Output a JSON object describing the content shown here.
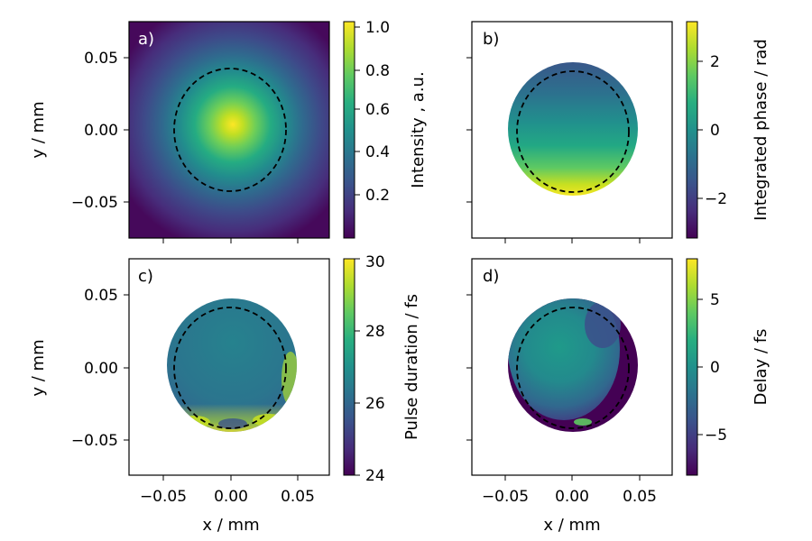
{
  "chart_data": [
    {
      "panel": "a)",
      "type": "heatmap",
      "description_quantity": "Intensity",
      "xlabel": "",
      "ylabel": "y / mm",
      "xlim": [
        -0.075,
        0.075
      ],
      "ylim": [
        -0.075,
        0.075
      ],
      "x_ticks": [
        -0.05,
        0.0,
        0.05
      ],
      "y_ticks": [
        0.05,
        0.0,
        -0.05
      ],
      "y_tick_labels": [
        "0.05",
        "0.00",
        "−0.05"
      ],
      "show_x_tick_labels": false,
      "show_y_tick_labels": true,
      "dashed_circle_center": [
        0.0,
        0.0
      ],
      "dashed_circle_radii_mm": [
        0.042,
        0.042
      ],
      "beam_center": [
        0.001,
        0.003
      ],
      "colormap": "viridis",
      "colorbar": {
        "label": "Intensity , a.u.",
        "range": [
          0.02,
          1.0
        ],
        "ticks": [
          0.2,
          0.4,
          0.6,
          0.8,
          1.0
        ],
        "tick_labels": [
          "0.2",
          "0.4",
          "0.6",
          "0.8",
          "1.0"
        ]
      }
    },
    {
      "panel": "b)",
      "type": "heatmap",
      "description_quantity": "Integrated phase",
      "xlabel": "",
      "ylabel": "",
      "xlim": [
        -0.075,
        0.075
      ],
      "ylim": [
        -0.075,
        0.075
      ],
      "x_ticks": [
        -0.05,
        0.0,
        0.05
      ],
      "y_ticks": [
        0.05,
        0.0,
        -0.05
      ],
      "show_x_tick_labels": false,
      "show_y_tick_labels": false,
      "aperture_center": [
        0.0,
        0.0
      ],
      "aperture_radii_mm": [
        0.047,
        0.049
      ],
      "dashed_circle_center": [
        0.0,
        0.0
      ],
      "dashed_circle_radii_mm": [
        0.042,
        0.042
      ],
      "colormap": "viridis",
      "colorbar": {
        "label": "Integrated phase / rad",
        "range": [
          -3.14,
          3.14
        ],
        "ticks": [
          2,
          0,
          -2
        ],
        "tick_labels": [
          "2",
          "0",
          "−2"
        ]
      }
    },
    {
      "panel": "c)",
      "type": "heatmap",
      "description_quantity": "Pulse duration",
      "xlabel": "x / mm",
      "ylabel": "y / mm",
      "xlim": [
        -0.075,
        0.075
      ],
      "ylim": [
        -0.075,
        0.075
      ],
      "x_ticks": [
        -0.05,
        0.0,
        0.05
      ],
      "x_tick_labels": [
        "−0.05",
        "0.00",
        "0.05"
      ],
      "y_ticks": [
        0.05,
        0.0,
        -0.05
      ],
      "y_tick_labels": [
        "0.05",
        "0.00",
        "−0.05"
      ],
      "show_x_tick_labels": true,
      "show_y_tick_labels": true,
      "aperture_center": [
        0.0,
        0.0
      ],
      "aperture_radii_mm": [
        0.047,
        0.049
      ],
      "dashed_circle_center": [
        0.0,
        0.0
      ],
      "dashed_circle_radii_mm": [
        0.042,
        0.042
      ],
      "colormap": "viridis",
      "colorbar": {
        "label": "Pulse duration / fs",
        "range": [
          24,
          30
        ],
        "ticks": [
          30,
          28,
          26,
          24
        ],
        "tick_labels": [
          "30",
          "28",
          "26",
          "24"
        ]
      }
    },
    {
      "panel": "d)",
      "type": "heatmap",
      "description_quantity": "Delay",
      "xlabel": "x / mm",
      "ylabel": "",
      "xlim": [
        -0.075,
        0.075
      ],
      "ylim": [
        -0.075,
        0.075
      ],
      "x_ticks": [
        -0.05,
        0.0,
        0.05
      ],
      "x_tick_labels": [
        "−0.05",
        "0.00",
        "0.05"
      ],
      "y_ticks": [
        0.05,
        0.0,
        -0.05
      ],
      "show_x_tick_labels": true,
      "show_y_tick_labels": false,
      "aperture_center": [
        0.0,
        0.0
      ],
      "aperture_radii_mm": [
        0.047,
        0.049
      ],
      "dashed_circle_center": [
        0.0,
        0.0
      ],
      "dashed_circle_radii_mm": [
        0.042,
        0.042
      ],
      "colormap": "viridis",
      "colorbar": {
        "label": "Delay / fs",
        "range": [
          -8,
          8
        ],
        "ticks": [
          5,
          0,
          -5
        ],
        "tick_labels": [
          "5",
          "0",
          "−5"
        ]
      }
    }
  ]
}
